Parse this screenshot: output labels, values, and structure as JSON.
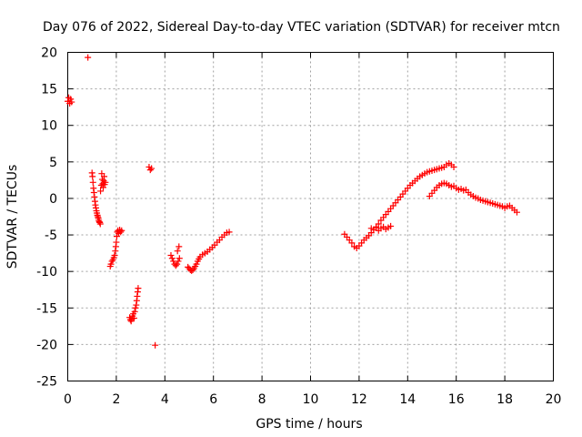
{
  "chart_data": {
    "type": "scatter",
    "title": "Day 076 of 2022, Sidereal Day-to-day VTEC variation (SDTVAR) for receiver mtcn",
    "xlabel": "GPS time / hours",
    "ylabel": "SDTVAR / TECUs",
    "xlim": [
      0,
      20
    ],
    "ylim": [
      -25,
      20
    ],
    "xticks": [
      0,
      2,
      4,
      6,
      8,
      10,
      12,
      14,
      16,
      18,
      20
    ],
    "yticks": [
      20,
      15,
      10,
      5,
      0,
      -5,
      -10,
      -15,
      -20,
      -25
    ],
    "grid": true,
    "marker": "+",
    "series_color": "#ff0000",
    "segments": [
      {
        "name": "seg-a",
        "x": [
          0.0,
          0.04,
          0.08,
          0.12,
          0.16
        ],
        "y": [
          13.3,
          13.8,
          13.0,
          13.6,
          13.2
        ]
      },
      {
        "name": "seg-b",
        "x": [
          0.83
        ],
        "y": [
          19.3
        ]
      },
      {
        "name": "seg-c",
        "x": [
          1.0,
          1.02,
          1.04,
          1.06,
          1.08,
          1.1,
          1.12,
          1.14,
          1.16,
          1.18,
          1.2,
          1.22,
          1.24,
          1.26,
          1.28,
          1.3,
          1.32,
          1.34
        ],
        "y": [
          3.5,
          3.0,
          2.2,
          1.4,
          0.8,
          0.2,
          -0.4,
          -0.9,
          -1.3,
          -1.7,
          -2.0,
          -2.3,
          -2.5,
          -2.7,
          -3.0,
          -3.2,
          -3.3,
          -3.5
        ]
      },
      {
        "name": "seg-d",
        "x": [
          1.35,
          1.38,
          1.4,
          1.42,
          1.44,
          1.46,
          1.48,
          1.5,
          1.52,
          1.55
        ],
        "y": [
          1.0,
          1.8,
          3.4,
          2.6,
          2.0,
          1.5,
          2.4,
          3.0,
          1.9,
          2.2
        ]
      },
      {
        "name": "seg-e",
        "x": [
          1.75,
          1.78,
          1.82,
          1.86,
          1.9,
          1.93,
          1.96,
          1.98,
          2.0,
          2.02,
          2.04,
          2.07,
          2.1,
          2.14,
          2.18,
          2.22
        ],
        "y": [
          -9.3,
          -9.0,
          -8.6,
          -8.4,
          -8.1,
          -7.8,
          -7.2,
          -6.6,
          -6.0,
          -5.2,
          -4.6,
          -4.4,
          -4.8,
          -4.3,
          -4.6,
          -4.4
        ]
      },
      {
        "name": "seg-f",
        "x": [
          2.55,
          2.58,
          2.61,
          2.64,
          2.67,
          2.7,
          2.73,
          2.76,
          2.79,
          2.82,
          2.84,
          2.86,
          2.88,
          2.9
        ],
        "y": [
          -16.3,
          -16.6,
          -16.8,
          -16.5,
          -16.1,
          -15.8,
          -16.4,
          -15.5,
          -15.0,
          -14.6,
          -14.0,
          -13.4,
          -12.8,
          -12.3
        ]
      },
      {
        "name": "seg-g",
        "x": [
          3.35,
          3.4,
          3.45
        ],
        "y": [
          4.3,
          3.9,
          4.1
        ]
      },
      {
        "name": "seg-h",
        "x": [
          3.6
        ],
        "y": [
          -20.1
        ]
      },
      {
        "name": "seg-i",
        "x": [
          4.25,
          4.3,
          4.35,
          4.4,
          4.45,
          4.5,
          4.55,
          4.6,
          4.52,
          4.58
        ],
        "y": [
          -7.8,
          -8.2,
          -8.6,
          -9.0,
          -9.2,
          -9.0,
          -8.6,
          -8.2,
          -7.2,
          -6.6
        ]
      },
      {
        "name": "seg-j",
        "x": [
          4.95,
          5.0,
          5.05,
          5.1,
          5.15,
          5.2,
          5.25,
          5.3,
          5.35,
          5.4,
          5.45,
          5.55,
          5.65,
          5.75,
          5.85,
          5.95,
          6.05,
          6.15,
          6.25,
          6.35,
          6.45,
          6.55,
          6.65
        ],
        "y": [
          -9.4,
          -9.6,
          -9.8,
          -9.9,
          -9.8,
          -9.6,
          -9.3,
          -9.0,
          -8.6,
          -8.3,
          -8.0,
          -7.7,
          -7.5,
          -7.3,
          -7.0,
          -6.7,
          -6.4,
          -6.0,
          -5.7,
          -5.3,
          -5.0,
          -4.7,
          -4.6
        ]
      },
      {
        "name": "seg-k",
        "x": [
          11.4,
          11.5,
          11.6,
          11.7,
          11.8,
          11.9,
          12.0,
          12.1,
          12.2,
          12.3,
          12.4,
          12.5,
          12.6,
          12.7,
          12.8,
          12.9,
          13.0,
          13.1,
          13.2,
          13.3,
          13.4,
          13.5,
          13.6,
          13.7,
          13.8,
          13.9,
          14.0,
          14.1,
          14.2,
          14.3,
          14.4,
          14.5,
          14.6,
          14.7,
          14.8,
          14.9,
          15.0,
          15.1,
          15.2,
          15.3,
          15.4,
          15.5,
          15.6,
          15.7,
          15.8,
          15.9
        ],
        "y": [
          -4.9,
          -5.3,
          -5.7,
          -6.1,
          -6.6,
          -6.8,
          -6.5,
          -6.1,
          -5.7,
          -5.4,
          -5.1,
          -4.7,
          -4.3,
          -3.9,
          -3.5,
          -3.0,
          -2.6,
          -2.2,
          -1.8,
          -1.4,
          -1.0,
          -0.6,
          -0.2,
          0.2,
          0.6,
          1.0,
          1.4,
          1.8,
          2.1,
          2.4,
          2.7,
          3.0,
          3.2,
          3.4,
          3.6,
          3.7,
          3.8,
          3.9,
          4.0,
          4.1,
          4.2,
          4.3,
          4.6,
          4.8,
          4.6,
          4.3
        ]
      },
      {
        "name": "seg-l",
        "x": [
          12.5,
          12.6,
          12.7,
          12.8,
          12.9,
          13.0,
          13.1,
          13.2,
          13.3
        ],
        "y": [
          -4.1,
          -4.3,
          -4.0,
          -4.4,
          -4.1,
          -3.9,
          -4.2,
          -4.0,
          -3.8
        ]
      },
      {
        "name": "seg-m",
        "x": [
          14.9,
          15.0,
          15.1,
          15.2,
          15.3,
          15.4,
          15.5,
          15.6,
          15.7,
          15.8,
          15.9,
          16.0,
          16.1,
          16.2,
          16.3,
          16.4,
          16.5,
          16.6,
          16.7,
          16.8,
          16.9,
          17.0,
          17.1,
          17.2,
          17.3,
          17.4,
          17.5,
          17.6,
          17.7,
          17.8,
          17.9,
          18.0,
          18.1,
          18.2,
          18.3,
          18.4,
          18.5
        ],
        "y": [
          0.3,
          0.7,
          1.1,
          1.5,
          1.8,
          2.0,
          2.1,
          2.0,
          1.8,
          1.6,
          1.7,
          1.4,
          1.2,
          1.3,
          1.1,
          1.2,
          0.8,
          0.5,
          0.3,
          0.1,
          0.0,
          -0.2,
          -0.3,
          -0.4,
          -0.5,
          -0.6,
          -0.7,
          -0.8,
          -0.9,
          -1.0,
          -1.1,
          -1.3,
          -1.1,
          -1.0,
          -1.3,
          -1.6,
          -1.9
        ]
      }
    ]
  }
}
